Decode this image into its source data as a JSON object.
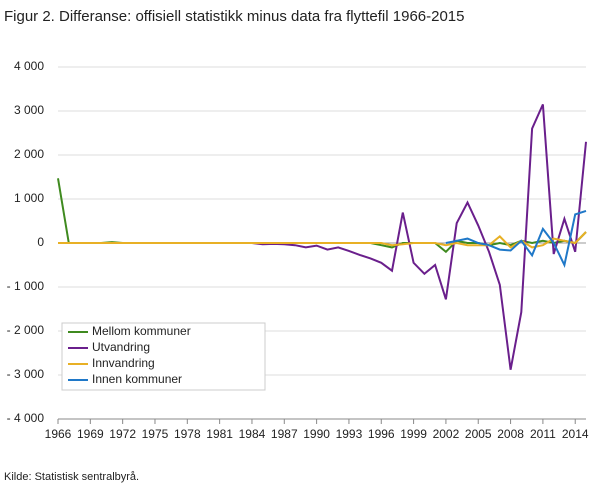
{
  "chart_data": {
    "type": "line",
    "title": "Figur 2. Differanse: offisiell statistikk minus data fra flyttefil 1966-2015",
    "source": "Kilde: Statistisk sentralbyrå.",
    "x": [
      1966,
      1967,
      1968,
      1969,
      1970,
      1971,
      1972,
      1973,
      1974,
      1975,
      1976,
      1977,
      1978,
      1979,
      1980,
      1981,
      1982,
      1983,
      1984,
      1985,
      1986,
      1987,
      1988,
      1989,
      1990,
      1991,
      1992,
      1993,
      1994,
      1995,
      1996,
      1997,
      1998,
      1999,
      2000,
      2001,
      2002,
      2003,
      2004,
      2005,
      2006,
      2007,
      2008,
      2009,
      2010,
      2011,
      2012,
      2013,
      2014,
      2015
    ],
    "series": [
      {
        "name": "Mellom kommuner",
        "color": "#3f8a1f",
        "values": [
          1470,
          0,
          0,
          0,
          0,
          20,
          0,
          0,
          0,
          0,
          0,
          0,
          0,
          0,
          0,
          0,
          0,
          0,
          0,
          0,
          0,
          0,
          0,
          0,
          0,
          0,
          0,
          0,
          0,
          0,
          -50,
          -100,
          0,
          0,
          0,
          0,
          -200,
          50,
          0,
          0,
          -50,
          0,
          -50,
          50,
          0,
          50,
          0,
          50,
          0,
          250
        ]
      },
      {
        "name": "Utvandring",
        "color": "#6a1f8c",
        "values": [
          0,
          0,
          0,
          0,
          0,
          0,
          0,
          0,
          0,
          0,
          0,
          0,
          0,
          0,
          0,
          0,
          0,
          0,
          0,
          -30,
          -20,
          -30,
          -50,
          -100,
          -60,
          -150,
          -100,
          -180,
          -270,
          -350,
          -450,
          -630,
          690,
          -450,
          -700,
          -500,
          -1280,
          450,
          920,
          400,
          -200,
          -950,
          -2880,
          -1570,
          2600,
          3150,
          -250,
          550,
          -200,
          2300
        ]
      },
      {
        "name": "Innvandring",
        "color": "#e8b025",
        "values": [
          0,
          0,
          0,
          0,
          0,
          0,
          0,
          0,
          0,
          0,
          0,
          0,
          0,
          0,
          0,
          0,
          0,
          0,
          0,
          0,
          0,
          0,
          0,
          0,
          0,
          0,
          0,
          0,
          0,
          0,
          0,
          -50,
          -30,
          0,
          0,
          0,
          -50,
          0,
          -50,
          -50,
          -50,
          150,
          -100,
          50,
          -100,
          -50,
          100,
          50,
          0,
          250
        ]
      },
      {
        "name": "Innen kommuner",
        "color": "#1f78c8",
        "values": [
          null,
          null,
          null,
          null,
          null,
          null,
          null,
          null,
          null,
          null,
          null,
          null,
          null,
          null,
          null,
          null,
          null,
          null,
          null,
          null,
          null,
          null,
          null,
          null,
          null,
          null,
          null,
          null,
          null,
          null,
          null,
          null,
          null,
          null,
          null,
          null,
          0,
          50,
          100,
          0,
          -50,
          -150,
          -170,
          50,
          -280,
          320,
          0,
          -500,
          650,
          730
        ]
      }
    ],
    "xlim": [
      1966,
      2015
    ],
    "xticks": [
      1966,
      1969,
      1972,
      1975,
      1978,
      1981,
      1984,
      1987,
      1990,
      1993,
      1996,
      1999,
      2002,
      2005,
      2008,
      2011,
      2014
    ],
    "ylim": [
      -4000,
      4000
    ],
    "yticks": [
      {
        "value": -4000,
        "label": "- 4 000"
      },
      {
        "value": -3000,
        "label": "- 3 000"
      },
      {
        "value": -2000,
        "label": "- 2 000"
      },
      {
        "value": -1000,
        "label": "- 1 000"
      },
      0,
      {
        "value": 1000,
        "label": "1 000"
      },
      {
        "value": 2000,
        "label": "2 000"
      },
      {
        "value": 3000,
        "label": "3 000"
      },
      {
        "value": 4000,
        "label": "4 000"
      }
    ],
    "grid": true
  }
}
